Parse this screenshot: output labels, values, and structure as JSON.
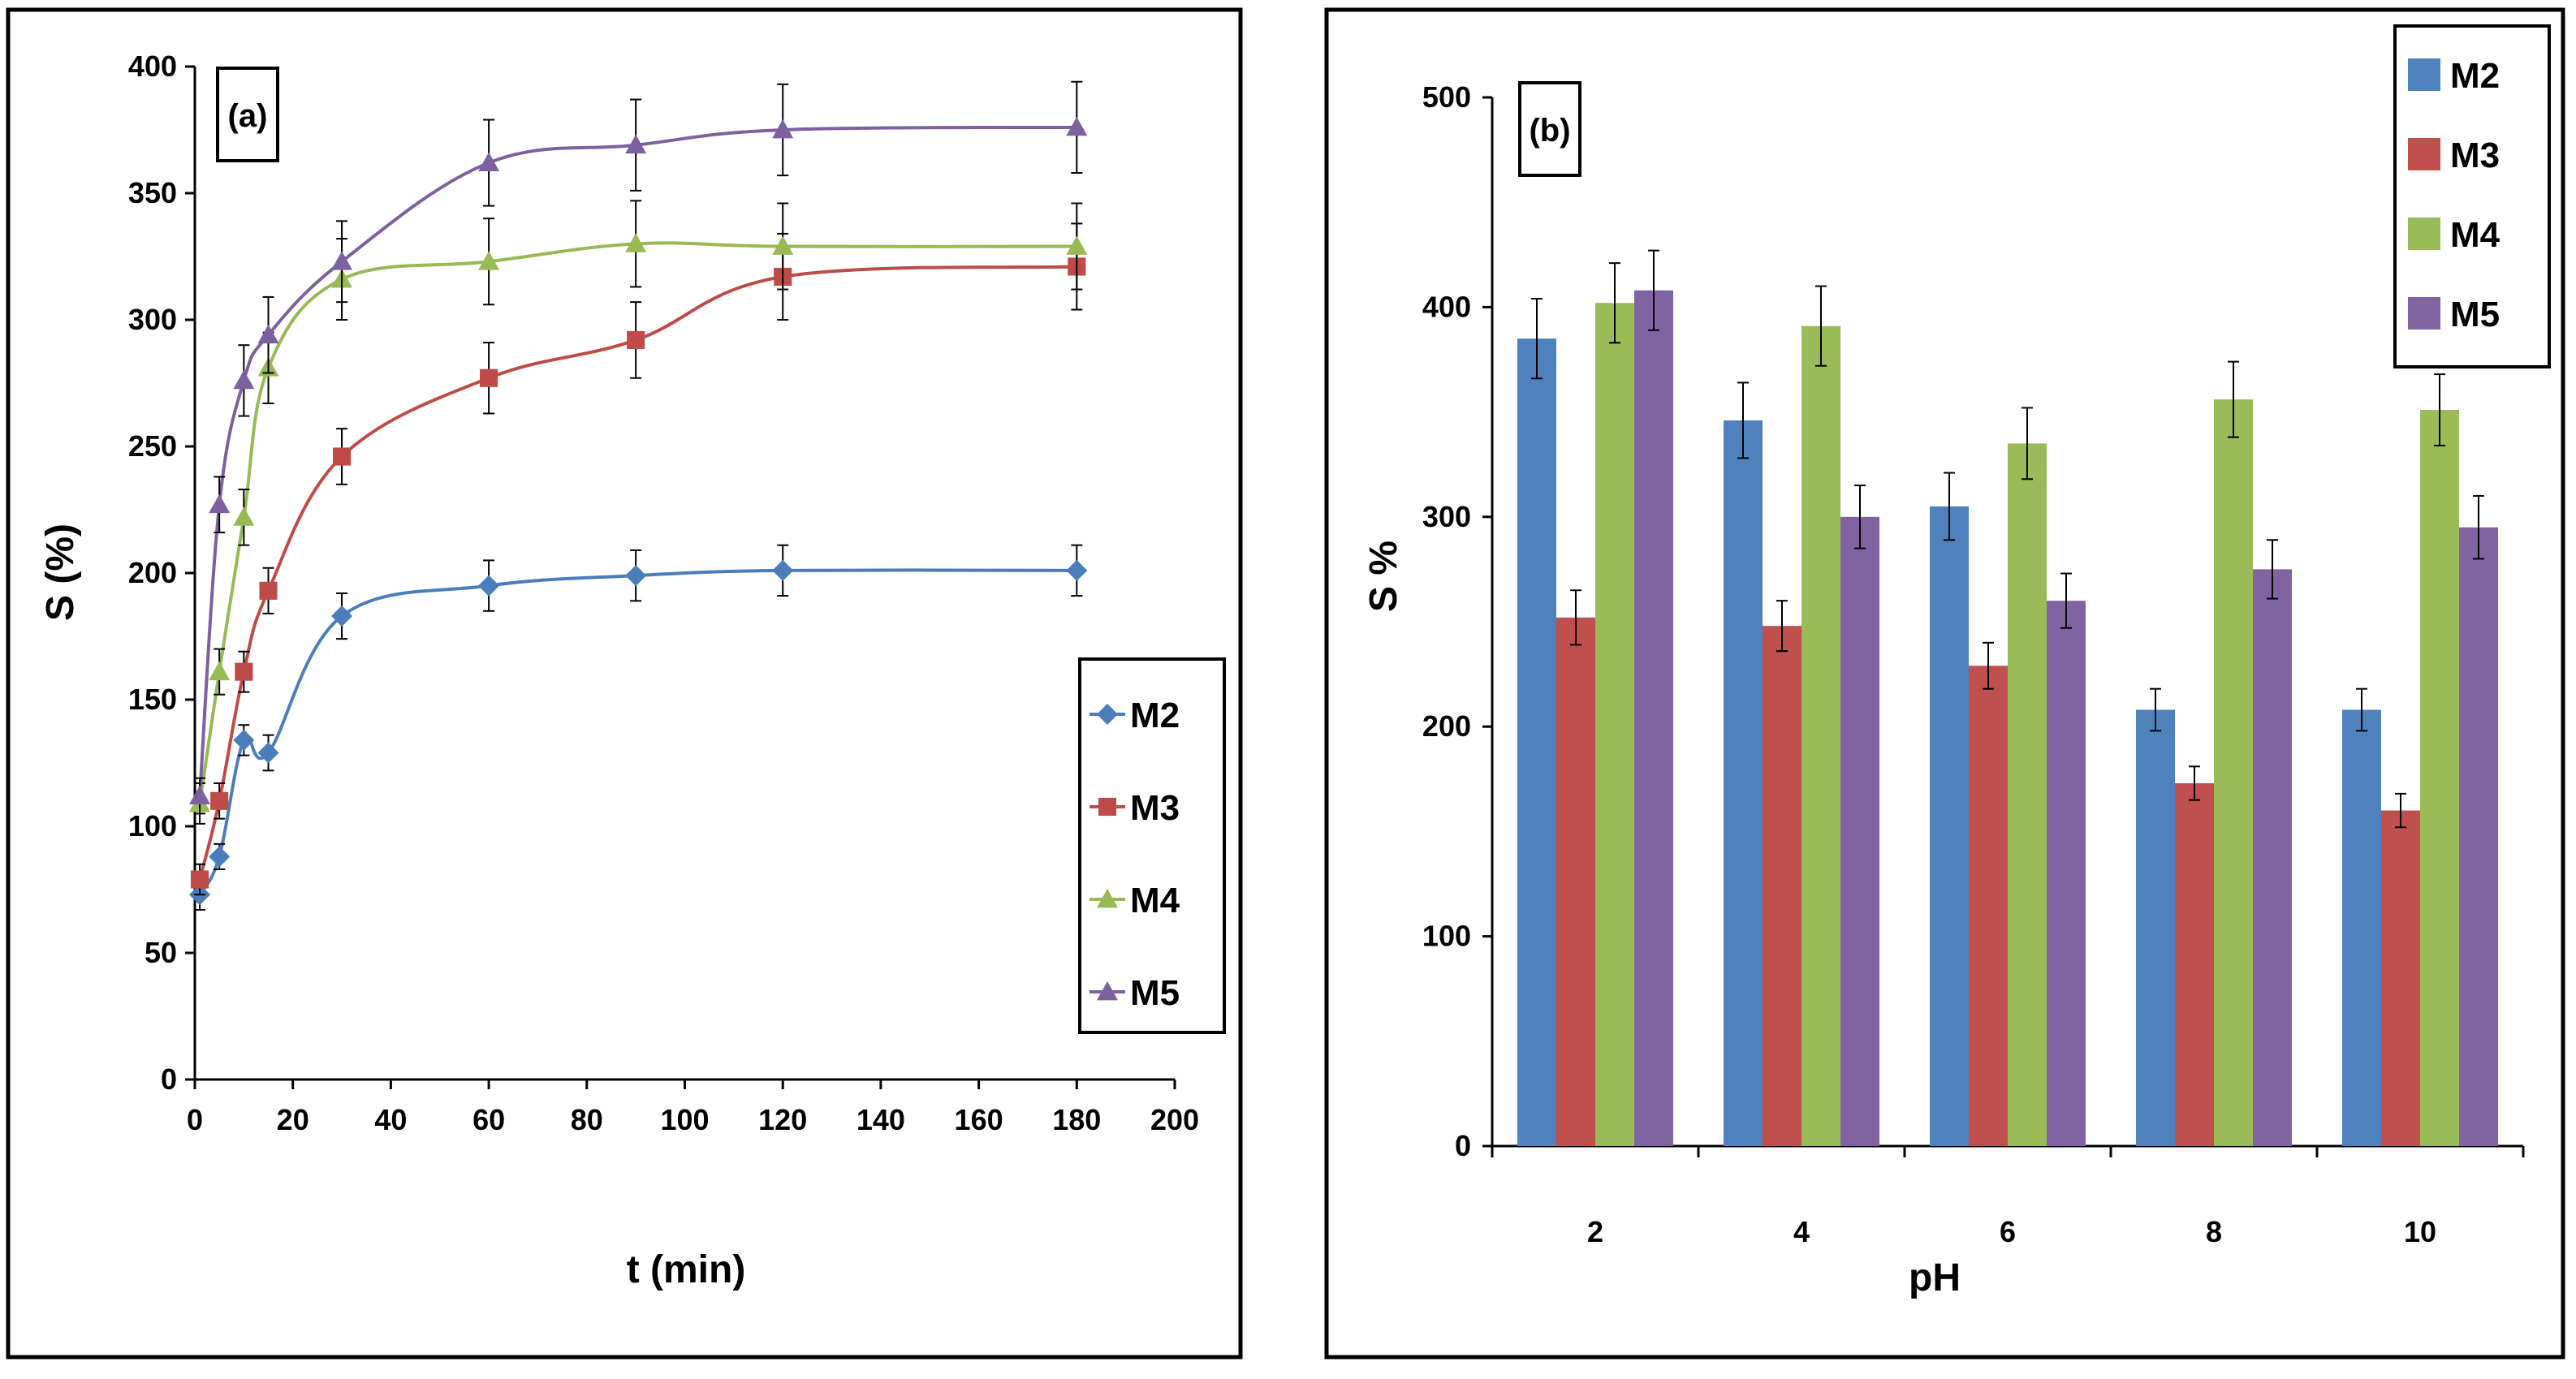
{
  "chart_data": [
    {
      "type": "line",
      "panel_label": "(a)",
      "xlabel": "t (min)",
      "ylabel": "S (%)",
      "xlim": [
        0,
        200
      ],
      "ylim": [
        0,
        400
      ],
      "xticks": [
        "0",
        "20",
        "40",
        "60",
        "80",
        "100",
        "120",
        "140",
        "160",
        "180",
        "200"
      ],
      "yticks": [
        "0",
        "50",
        "100",
        "150",
        "200",
        "250",
        "300",
        "350",
        "400"
      ],
      "legend_position": "right-middle",
      "series": [
        {
          "name": "M2",
          "color": "#4A7EBB",
          "marker": "diamond",
          "x": [
            1,
            5,
            10,
            15,
            30,
            60,
            90,
            120,
            180
          ],
          "y": [
            73,
            88,
            134,
            129,
            183,
            195,
            199,
            201,
            201
          ],
          "err": [
            6,
            5,
            6,
            7,
            9,
            10,
            10,
            10,
            10
          ]
        },
        {
          "name": "M3",
          "color": "#BE4B48",
          "marker": "square",
          "x": [
            1,
            5,
            10,
            15,
            30,
            60,
            90,
            120,
            180
          ],
          "y": [
            79,
            110,
            161,
            193,
            246,
            277,
            292,
            317,
            321
          ],
          "err": [
            6,
            7,
            8,
            9,
            11,
            14,
            15,
            17,
            17
          ]
        },
        {
          "name": "M4",
          "color": "#98B954",
          "marker": "triangle",
          "x": [
            1,
            5,
            10,
            15,
            30,
            60,
            90,
            120,
            180
          ],
          "y": [
            109,
            161,
            222,
            281,
            316,
            323,
            330,
            329,
            329
          ],
          "err": [
            8,
            9,
            11,
            14,
            16,
            17,
            17,
            17,
            17
          ]
        },
        {
          "name": "M5",
          "color": "#7D60A0",
          "marker": "triangle",
          "x": [
            1,
            5,
            10,
            15,
            30,
            60,
            90,
            120,
            180
          ],
          "y": [
            112,
            227,
            276,
            294,
            323,
            362,
            369,
            375,
            376
          ],
          "err": [
            7,
            11,
            14,
            15,
            16,
            17,
            18,
            18,
            18
          ]
        }
      ]
    },
    {
      "type": "bar",
      "panel_label": "(b)",
      "xlabel": "pH",
      "ylabel": "S %",
      "ylim": [
        0,
        500
      ],
      "categories": [
        "2",
        "4",
        "6",
        "8",
        "10"
      ],
      "yticks": [
        "0",
        "100",
        "200",
        "300",
        "400",
        "500"
      ],
      "legend_position": "top-right",
      "series": [
        {
          "name": "M2",
          "color": "#4F81BD",
          "values": [
            385,
            346,
            305,
            208,
            208
          ],
          "err": [
            19,
            18,
            16,
            10,
            10
          ]
        },
        {
          "name": "M3",
          "color": "#C0504D",
          "values": [
            252,
            248,
            229,
            173,
            160
          ],
          "err": [
            13,
            12,
            11,
            8,
            8
          ]
        },
        {
          "name": "M4",
          "color": "#9BBB59",
          "values": [
            402,
            391,
            335,
            356,
            351
          ],
          "err": [
            19,
            19,
            17,
            18,
            17
          ]
        },
        {
          "name": "M5",
          "color": "#8064A2",
          "values": [
            408,
            300,
            260,
            275,
            295
          ],
          "err": [
            19,
            15,
            13,
            14,
            15
          ]
        }
      ]
    }
  ]
}
